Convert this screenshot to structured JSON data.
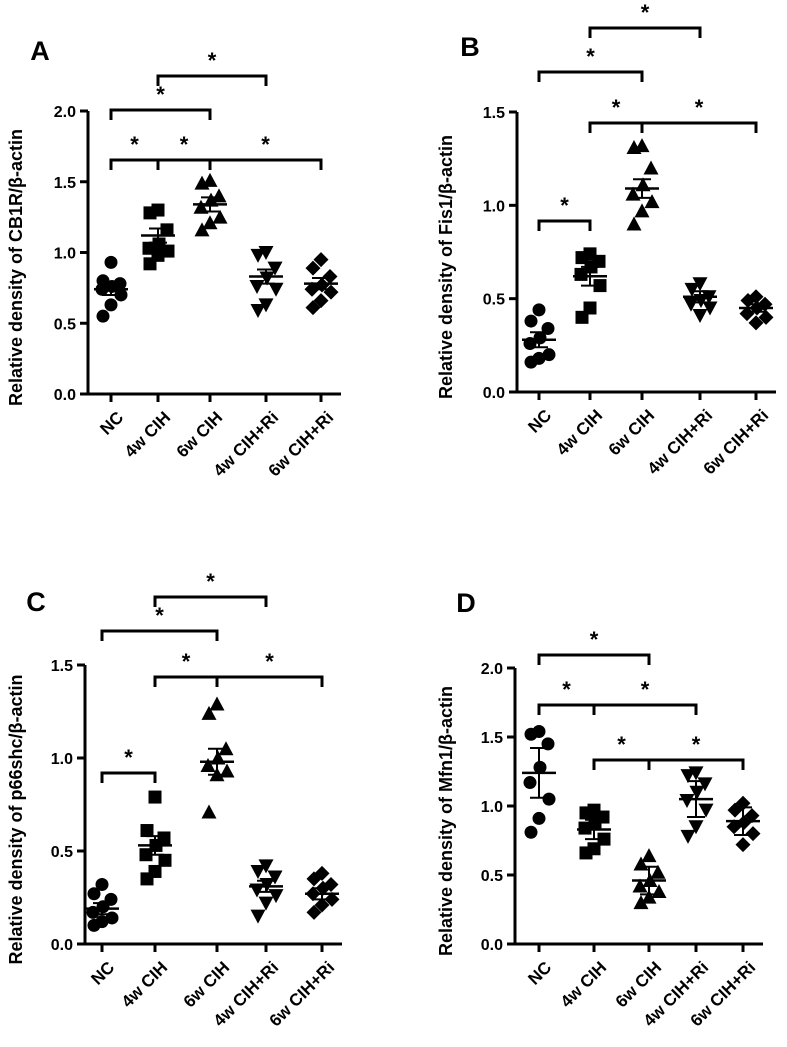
{
  "figure": {
    "panels": [
      "A",
      "B",
      "C",
      "D"
    ]
  },
  "chart_data": [
    {
      "panel": "A",
      "type": "scatter",
      "ylabel": "Relative density of CB1R/β-actin",
      "ylim": [
        0,
        2.0
      ],
      "yticks": [
        "0.0",
        "0.5",
        "1.0",
        "1.5",
        "2.0"
      ],
      "categories": [
        "NC",
        "4w CIH",
        "6w CIH",
        "4w CIH+Ri",
        "6w CIH+Ri"
      ],
      "markers": [
        "circle",
        "square",
        "triangle-up",
        "triangle-down",
        "diamond"
      ],
      "points": [
        [
          0.93,
          0.8,
          0.78,
          0.76,
          0.74,
          0.7,
          0.63,
          0.55
        ],
        [
          1.3,
          1.28,
          1.16,
          1.06,
          1.03,
          1.01,
          0.98,
          0.92
        ],
        [
          1.51,
          1.49,
          1.4,
          1.37,
          1.32,
          1.25,
          1.21,
          1.16
        ],
        [
          1.0,
          0.98,
          0.89,
          0.82,
          0.76,
          0.74,
          0.63,
          0.59
        ],
        [
          0.95,
          0.89,
          0.83,
          0.77,
          0.74,
          0.72,
          0.66,
          0.61
        ]
      ],
      "mean": [
        0.74,
        1.12,
        1.34,
        0.83,
        0.78
      ],
      "sem": [
        0.04,
        0.05,
        0.05,
        0.05,
        0.04
      ],
      "significance": [
        {
          "from": 0,
          "to": 1,
          "label": "*"
        },
        {
          "from": 1,
          "to": 2,
          "label": "*"
        },
        {
          "from": 0,
          "to": 2,
          "label": "*"
        },
        {
          "from": 1,
          "to": 3,
          "label": "*"
        },
        {
          "from": 2,
          "to": 4,
          "label": "*"
        }
      ]
    },
    {
      "panel": "B",
      "type": "scatter",
      "ylabel": "Relative density of Fis1/β-actin",
      "ylim": [
        0,
        1.5
      ],
      "yticks": [
        "0.0",
        "0.5",
        "1.0",
        "1.5"
      ],
      "categories": [
        "NC",
        "4w CIH",
        "6w CIH",
        "4w CIH+Ri",
        "6w CIH+Ri"
      ],
      "markers": [
        "circle",
        "square",
        "triangle-up",
        "triangle-down",
        "diamond"
      ],
      "points": [
        [
          0.44,
          0.38,
          0.34,
          0.29,
          0.26,
          0.2,
          0.18,
          0.16
        ],
        [
          0.74,
          0.72,
          0.7,
          0.67,
          0.63,
          0.57,
          0.45,
          0.4
        ],
        [
          1.32,
          1.31,
          1.2,
          1.11,
          1.06,
          1.02,
          0.97,
          0.9
        ],
        [
          0.58,
          0.55,
          0.51,
          0.49,
          0.47,
          0.45,
          0.41
        ],
        [
          0.51,
          0.49,
          0.47,
          0.45,
          0.42,
          0.4,
          0.37
        ]
      ],
      "mean": [
        0.28,
        0.62,
        1.09,
        0.51,
        0.45
      ],
      "sem": [
        0.04,
        0.05,
        0.05,
        0.03,
        0.02
      ],
      "significance": [
        {
          "from": 0,
          "to": 1,
          "label": "*"
        },
        {
          "from": 1,
          "to": 2,
          "label": "*"
        },
        {
          "from": 0,
          "to": 2,
          "label": "*"
        },
        {
          "from": 1,
          "to": 3,
          "label": "*"
        },
        {
          "from": 2,
          "to": 4,
          "label": "*"
        }
      ]
    },
    {
      "panel": "C",
      "type": "scatter",
      "ylabel": "Relative density of p66shc/β-actin",
      "ylim": [
        0,
        1.5
      ],
      "yticks": [
        "0.0",
        "0.5",
        "1.0",
        "1.5"
      ],
      "categories": [
        "NC",
        "4w CIH",
        "6w CIH",
        "4w CIH+Ri",
        "6w CIH+Ri"
      ],
      "markers": [
        "circle",
        "square",
        "triangle-up",
        "triangle-down",
        "diamond"
      ],
      "points": [
        [
          0.32,
          0.27,
          0.24,
          0.2,
          0.17,
          0.14,
          0.12,
          0.1
        ],
        [
          0.79,
          0.61,
          0.57,
          0.53,
          0.48,
          0.45,
          0.39,
          0.35
        ],
        [
          1.29,
          1.24,
          1.05,
          1.0,
          0.96,
          0.93,
          0.91,
          0.71
        ],
        [
          0.42,
          0.39,
          0.36,
          0.32,
          0.29,
          0.26,
          0.22,
          0.15
        ],
        [
          0.38,
          0.35,
          0.32,
          0.3,
          0.27,
          0.24,
          0.21,
          0.17
        ]
      ],
      "mean": [
        0.19,
        0.53,
        0.98,
        0.31,
        0.27
      ],
      "sem": [
        0.03,
        0.05,
        0.07,
        0.03,
        0.03
      ],
      "significance": [
        {
          "from": 0,
          "to": 1,
          "label": "*"
        },
        {
          "from": 1,
          "to": 2,
          "label": "*"
        },
        {
          "from": 0,
          "to": 2,
          "label": "*"
        },
        {
          "from": 1,
          "to": 3,
          "label": "*"
        },
        {
          "from": 2,
          "to": 4,
          "label": "*"
        }
      ]
    },
    {
      "panel": "D",
      "type": "scatter",
      "ylabel": "Relative density of Mfn1/β-actin",
      "ylim": [
        0,
        2.0
      ],
      "yticks": [
        "0.0",
        "0.5",
        "1.0",
        "1.5",
        "2.0"
      ],
      "categories": [
        "NC",
        "4w CIH",
        "6w CIH",
        "4w CIH+Ri",
        "6w CIH+Ri"
      ],
      "markers": [
        "circle",
        "square",
        "triangle-up",
        "triangle-down",
        "diamond"
      ],
      "points": [
        [
          1.54,
          1.52,
          1.45,
          1.28,
          1.17,
          1.05,
          0.91,
          0.81
        ],
        [
          0.97,
          0.95,
          0.92,
          0.88,
          0.84,
          0.76,
          0.69,
          0.66
        ],
        [
          0.64,
          0.58,
          0.52,
          0.46,
          0.42,
          0.38,
          0.34,
          0.3
        ],
        [
          1.24,
          1.22,
          1.16,
          1.1,
          1.04,
          0.97,
          0.85,
          0.78
        ],
        [
          1.02,
          0.97,
          0.93,
          0.88,
          0.85,
          0.8,
          0.72
        ]
      ],
      "mean": [
        1.24,
        0.83,
        0.46,
        1.05,
        0.89
      ],
      "sem": [
        0.18,
        0.07,
        0.1,
        0.13,
        0.1
      ],
      "significance": [
        {
          "from": 0,
          "to": 1,
          "label": "*"
        },
        {
          "from": 1,
          "to": 2,
          "label": "*"
        },
        {
          "from": 0,
          "to": 2,
          "label": "*"
        },
        {
          "from": 1,
          "to": 3,
          "label": "*"
        },
        {
          "from": 2,
          "to": 4,
          "label": "*"
        }
      ]
    }
  ]
}
